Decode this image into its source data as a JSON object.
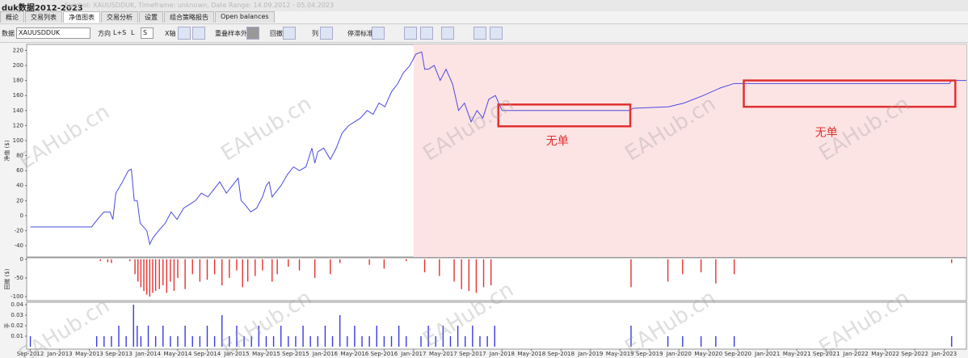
{
  "window": {
    "title": "duk数据2012-2023",
    "subtitle": "Symbol: XAUUSDDUK, Timeframe: unknown, Date Range: 14.09.2012 - 05.04.2023"
  },
  "tabs": [
    "概论",
    "交易列表",
    "净值图表",
    "交易分析",
    "设置",
    "组合策略报告",
    "Open balances"
  ],
  "active_tab": 2,
  "toolbar": {
    "data_label": "数据",
    "symbol": "XAUUSDDUK",
    "direction_label": "方向",
    "direction_options": [
      "L+S",
      "L",
      "S"
    ],
    "x_axis_label": "X轴",
    "oos_label": "重叠样本外",
    "drawdown_label": "回撤",
    "column_label": "列",
    "stagnation_label": "停滞标准"
  },
  "watermark": "EAHub.cn",
  "chart_data": [
    {
      "type": "line",
      "y_label": "净值 ($)",
      "color": "#4a4ae0",
      "xlim": [
        -0.5,
        127
      ],
      "ylim": [
        -55,
        228
      ],
      "yticks": [
        -40,
        -20,
        0,
        20,
        40,
        60,
        80,
        100,
        120,
        140,
        160,
        180,
        200,
        220
      ],
      "shaded_region": {
        "x": [
          52,
          127
        ],
        "color": "#fde4e4"
      },
      "x": [
        0,
        8.3,
        9.1,
        10,
        10.8,
        11.2,
        11.6,
        12.5,
        13.3,
        13.7,
        14.1,
        14.5,
        14.9,
        15.8,
        16.2,
        16.6,
        17.4,
        18.3,
        19.1,
        19.9,
        20.8,
        21.6,
        22.4,
        23.2,
        24.1,
        24.9,
        25.7,
        26.6,
        27.4,
        28.2,
        28.6,
        29.1,
        29.9,
        30.7,
        31.5,
        32,
        32.4,
        32.8,
        33.2,
        34,
        34.9,
        35.7,
        36.5,
        37.4,
        38.2,
        38.6,
        39,
        39.8,
        40.7,
        41.5,
        42.3,
        43.2,
        44,
        44.8,
        45.7,
        46.5,
        47.3,
        48.1,
        49,
        49.8,
        50.6,
        51.5,
        52.3,
        53.1,
        53.5,
        54,
        54.8,
        55.6,
        56.4,
        57.3,
        58.1,
        58.9,
        59.8,
        60.6,
        61.4,
        62.2,
        63.1,
        64,
        81.3,
        81.8,
        86.6,
        88.7,
        91.3,
        93.6,
        95.5,
        124.7,
        125,
        127
      ],
      "values": [
        -15,
        -15,
        -5,
        5,
        5,
        -5,
        30,
        45,
        60,
        62,
        20,
        20,
        -10,
        -20,
        -38,
        -30,
        -20,
        -10,
        5,
        -5,
        10,
        15,
        20,
        30,
        25,
        35,
        45,
        30,
        40,
        50,
        20,
        15,
        5,
        10,
        25,
        40,
        45,
        25,
        30,
        40,
        55,
        65,
        60,
        65,
        90,
        70,
        85,
        90,
        75,
        90,
        110,
        120,
        125,
        130,
        140,
        135,
        150,
        145,
        165,
        175,
        190,
        200,
        215,
        218,
        195,
        195,
        200,
        180,
        195,
        175,
        140,
        150,
        125,
        140,
        130,
        155,
        160,
        140,
        140,
        143,
        145,
        150,
        160,
        170,
        176,
        176,
        180,
        180
      ],
      "annotations": [
        {
          "text": "无单",
          "x": 71.5,
          "y": 99,
          "box": {
            "x": [
              63.5,
              81.4
            ],
            "y": [
              119,
              148
            ]
          }
        },
        {
          "text": "无单",
          "x": 108,
          "y": 110,
          "box": {
            "x": [
              96.8,
              125.5
            ],
            "y": [
              145,
              180
            ]
          }
        }
      ]
    },
    {
      "type": "bar",
      "y_label": "回撤 ($)",
      "color": "#e83030",
      "xlim": [
        -0.5,
        127
      ],
      "ylim": [
        -111,
        4
      ],
      "yticks": [
        0,
        -50,
        -100
      ],
      "x": [
        9.5,
        10.5,
        11,
        13.5,
        14.2,
        14.6,
        15,
        15.4,
        15.8,
        16.2,
        16.6,
        17,
        17.5,
        18,
        18.5,
        19,
        19.5,
        20,
        21,
        22,
        23,
        24,
        25,
        26,
        27,
        28,
        28.8,
        29.5,
        30.5,
        31.5,
        32.8,
        33.5,
        35,
        36.5,
        38.6,
        40.7,
        42,
        46,
        48,
        51,
        53.5,
        55.5,
        57.5,
        58.5,
        59.5,
        60.5,
        61.5,
        62.5,
        81.5,
        86.5,
        88.5,
        91,
        93,
        95.5,
        125
      ],
      "values": [
        -5,
        -8,
        -10,
        -5,
        -40,
        -60,
        -75,
        -85,
        -95,
        -100,
        -90,
        -85,
        -80,
        -70,
        -90,
        -60,
        -85,
        -50,
        -80,
        -40,
        -60,
        -55,
        -40,
        -70,
        -50,
        -30,
        -75,
        -60,
        -45,
        -30,
        -60,
        -40,
        -20,
        -30,
        -50,
        -40,
        -10,
        -15,
        -25,
        -5,
        -35,
        -45,
        -60,
        -80,
        -85,
        -90,
        -75,
        -70,
        -75,
        -60,
        -40,
        -35,
        -65,
        -40,
        -10
      ]
    },
    {
      "type": "bar",
      "y_label": "手",
      "color": "#3a3ae0",
      "xlim": [
        -0.5,
        127
      ],
      "ylim": [
        -0.0023,
        0.0423
      ],
      "yticks": [
        0.01,
        0.02,
        0.03,
        0.04
      ],
      "xticks": [
        {
          "value": 0,
          "label": "Sep-2012"
        },
        {
          "value": 4,
          "label": "Jan-2013"
        },
        {
          "value": 8,
          "label": "May-2013"
        },
        {
          "value": 12,
          "label": "Sep-2013"
        },
        {
          "value": 16,
          "label": "Jan-2014"
        },
        {
          "value": 20,
          "label": "May-2014"
        },
        {
          "value": 24,
          "label": "Sep-2014"
        },
        {
          "value": 28,
          "label": "Jan-2015"
        },
        {
          "value": 32,
          "label": "May-2015"
        },
        {
          "value": 36,
          "label": "Sep-2015"
        },
        {
          "value": 40,
          "label": "Jan-2016"
        },
        {
          "value": 44,
          "label": "May-2016"
        },
        {
          "value": 48,
          "label": "Sep-2016"
        },
        {
          "value": 52,
          "label": "Jan-2017"
        },
        {
          "value": 56,
          "label": "May-2017"
        },
        {
          "value": 60,
          "label": "Sep-2017"
        },
        {
          "value": 64,
          "label": "Jan-2018"
        },
        {
          "value": 68,
          "label": "May-2018"
        },
        {
          "value": 72,
          "label": "Sep-2018"
        },
        {
          "value": 76,
          "label": "Jan-2019"
        },
        {
          "value": 80,
          "label": "May-2019"
        },
        {
          "value": 84,
          "label": "Sep-2019"
        },
        {
          "value": 88,
          "label": "Jan-2020"
        },
        {
          "value": 92,
          "label": "May-2020"
        },
        {
          "value": 96,
          "label": "Sep-2020"
        },
        {
          "value": 100,
          "label": "Jan-2021"
        },
        {
          "value": 104,
          "label": "May-2021"
        },
        {
          "value": 108,
          "label": "Sep-2021"
        },
        {
          "value": 112,
          "label": "Jan-2022"
        },
        {
          "value": 116,
          "label": "May-2022"
        },
        {
          "value": 120,
          "label": "Sep-2022"
        },
        {
          "value": 124,
          "label": "Jan-2023"
        }
      ],
      "x": [
        0,
        9,
        10,
        11,
        12,
        13,
        14,
        14.5,
        15,
        16,
        17,
        18,
        19,
        20,
        21,
        22,
        23,
        24,
        25,
        26,
        27,
        28,
        29,
        30,
        31,
        32,
        33,
        34,
        35,
        36,
        37,
        38,
        39,
        40,
        41,
        42,
        43,
        44,
        45,
        46,
        47,
        48,
        49,
        50,
        51,
        53,
        54,
        55,
        56,
        57,
        58,
        59,
        60,
        61,
        62,
        63,
        81.5,
        86.5,
        88.5,
        91,
        93,
        95.5,
        125
      ],
      "values": [
        0.01,
        0.01,
        0.01,
        0.01,
        0.02,
        0.01,
        0.04,
        0.02,
        0.01,
        0.02,
        0.01,
        0.02,
        0.01,
        0.01,
        0.02,
        0.01,
        0.01,
        0.02,
        0.01,
        0.03,
        0.01,
        0.02,
        0.01,
        0.01,
        0.02,
        0.01,
        0.01,
        0.02,
        0.01,
        0.01,
        0.02,
        0.01,
        0.01,
        0.02,
        0.01,
        0.03,
        0.01,
        0.02,
        0.01,
        0.01,
        0.02,
        0.01,
        0.01,
        0.02,
        0.01,
        0.01,
        0.02,
        0.01,
        0.02,
        0.01,
        0.02,
        0.01,
        0.02,
        0.01,
        0.01,
        0.02,
        0.02,
        0.01,
        0.01,
        0.01,
        0.01,
        0.01,
        0.01
      ]
    }
  ]
}
